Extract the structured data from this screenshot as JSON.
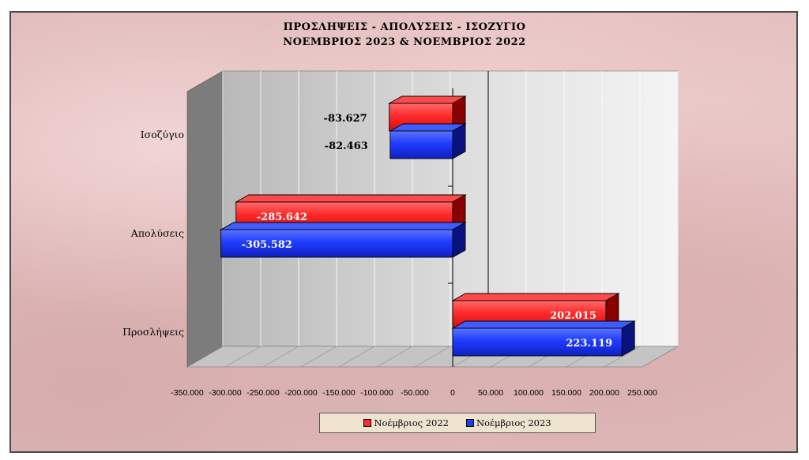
{
  "chart_data": {
    "type": "bar",
    "orientation": "horizontal",
    "title": "ΠΡΟΣΛΗΨΕΙΣ - ΑΠΟΛΥΣΕΙΣ - ΙΣΟΖΥΓΙΟ",
    "subtitle": "ΝΟΕΜΒΡΙΟΣ 2023  &  ΝΟΕΜΒΡΙΟΣ 2022",
    "categories": [
      "Ισοζύγιο",
      "Απολύσεις",
      "Προσλήψεις"
    ],
    "series": [
      {
        "name": "Νοέμβριος 2022",
        "color": "#ff2a2a",
        "values": [
          -83627,
          -285642,
          202015
        ],
        "labels": [
          "-83.627",
          "-285.642",
          "202.015"
        ]
      },
      {
        "name": "Νοέμβριος 2023",
        "color": "#1f3cff",
        "values": [
          -82463,
          -305582,
          223119
        ],
        "labels": [
          "-82.463",
          "-305.582",
          "223.119"
        ]
      }
    ],
    "xlim": [
      -350000,
      250000
    ],
    "xticks": [
      -350000,
      -300000,
      -250000,
      -200000,
      -150000,
      -100000,
      -50000,
      0,
      50000,
      100000,
      150000,
      200000,
      250000
    ],
    "xtick_labels": [
      "-350.000",
      "-300.000",
      "-250.000",
      "-200.000",
      "-150.000",
      "-100.000",
      "-50.000",
      "0",
      "50.000",
      "100.000",
      "150.000",
      "200.000",
      "250.000"
    ],
    "grid": true,
    "legend_position": "bottom",
    "style": "3d"
  }
}
